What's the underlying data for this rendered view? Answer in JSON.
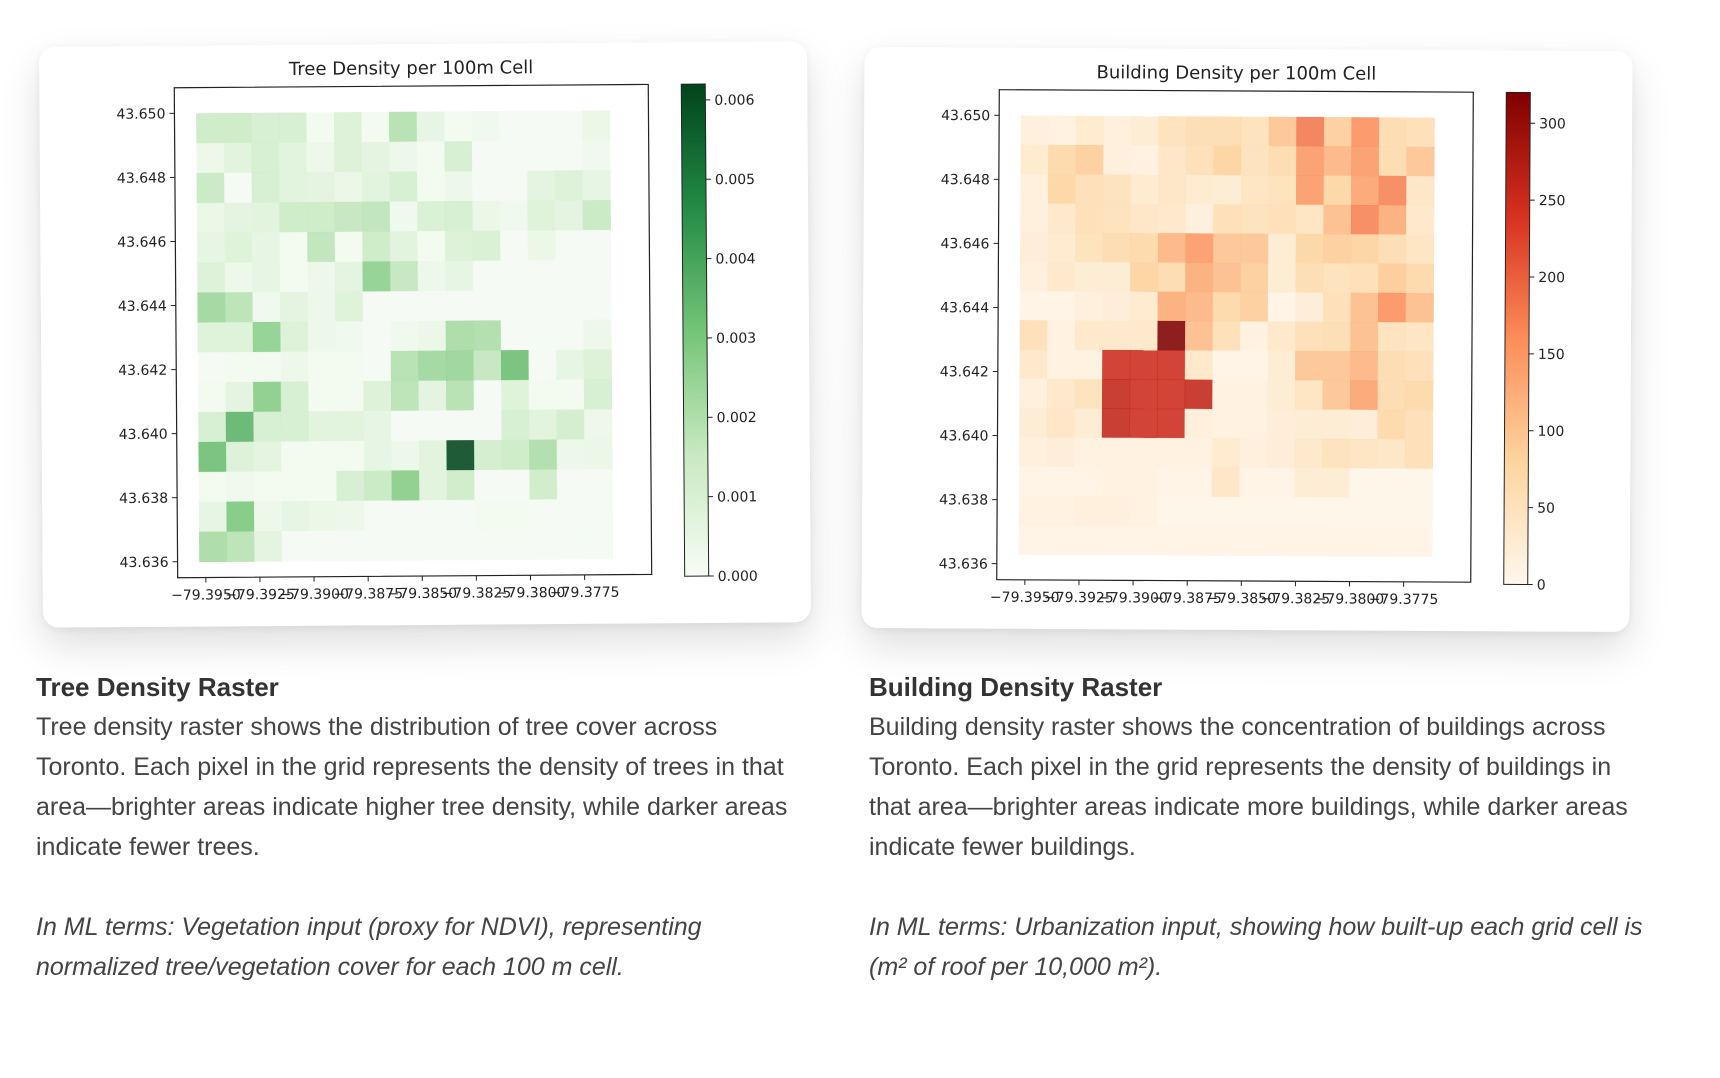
{
  "chart_data": [
    {
      "id": "tree",
      "type": "heatmap",
      "title": "Tree Density per 100m Cell",
      "xlabel": "",
      "ylabel": "",
      "colormap": [
        "#f7fcf5",
        "#c7e9c0",
        "#74c476",
        "#238b45",
        "#00441b"
      ],
      "vmin": 0,
      "vmax": 0.0062,
      "xlim": [
        -79.3963,
        -79.3744
      ],
      "ylim": [
        43.6355,
        43.6508
      ],
      "extent_lon": [
        -79.3953,
        -79.3762
      ],
      "extent_lat": [
        43.636,
        43.65
      ],
      "xticks": [
        -79.395,
        -79.3925,
        -79.39,
        -79.3875,
        -79.385,
        -79.3825,
        -79.38,
        -79.3775
      ],
      "xtick_labels": [
        "−79.3950",
        "−79.3925",
        "−79.3900",
        "−79.3875",
        "−79.3850",
        "−79.3825",
        "−79.3800",
        "−79.3775"
      ],
      "yticks": [
        43.636,
        43.638,
        43.64,
        43.642,
        43.644,
        43.646,
        43.648,
        43.65
      ],
      "ytick_labels": [
        "43.636",
        "43.638",
        "43.640",
        "43.642",
        "43.644",
        "43.646",
        "43.648",
        "43.650"
      ],
      "cbar_ticks": [
        0,
        0.001,
        0.002,
        0.003,
        0.004,
        0.005,
        0.006
      ],
      "cbar_tick_labels": [
        "0.000",
        "0.001",
        "0.002",
        "0.003",
        "0.004",
        "0.005",
        "0.006"
      ],
      "grid": [
        [
          0.0015,
          0.0015,
          0.0012,
          0.0012,
          0.0002,
          0.001,
          0.0002,
          0.002,
          0.0006,
          0.0002,
          0.0003,
          0.0001,
          0.0001,
          0.0001,
          0.0005
        ],
        [
          0.0004,
          0.0008,
          0.0012,
          0.0008,
          0.0004,
          0.001,
          0.0007,
          0.0004,
          0.0002,
          0.0012,
          0.0001,
          0.0001,
          0.0001,
          0.0001,
          0.0003
        ],
        [
          0.0016,
          0.0001,
          0.0012,
          0.0008,
          0.0007,
          0.0005,
          0.0008,
          0.0012,
          0.0002,
          0.0004,
          0.0001,
          0.0001,
          0.0007,
          0.001,
          0.0006
        ],
        [
          0.0005,
          0.0007,
          0.0008,
          0.0015,
          0.0015,
          0.0017,
          0.0018,
          0.0003,
          0.0011,
          0.0012,
          0.0005,
          0.0003,
          0.0009,
          0.0007,
          0.0016
        ],
        [
          0.0006,
          0.0009,
          0.0006,
          0.0002,
          0.0018,
          0.0002,
          0.0015,
          0.0008,
          0.0002,
          0.001,
          0.0011,
          0.0001,
          0.0005,
          0.0001,
          0.0001
        ],
        [
          0.001,
          0.0004,
          0.0006,
          0.0002,
          0.0004,
          0.0007,
          0.0027,
          0.0017,
          0.0004,
          0.0006,
          0.0001,
          0.0001,
          0.0001,
          0.0001,
          0.0001
        ],
        [
          0.0024,
          0.0019,
          0.0003,
          0.0007,
          0.0004,
          0.0009,
          0.0001,
          0.0001,
          0.0001,
          0.0001,
          0.0001,
          0.0001,
          0.0001,
          0.0001,
          0.0001
        ],
        [
          0.0009,
          0.0009,
          0.0027,
          0.001,
          0.0004,
          0.0003,
          0.0001,
          0.0003,
          0.0005,
          0.0022,
          0.0021,
          0.0001,
          0.0001,
          0.0001,
          0.0004
        ],
        [
          0.0001,
          0.0002,
          0.0002,
          0.0004,
          0.0002,
          0.0002,
          0.0001,
          0.002,
          0.0024,
          0.0025,
          0.0017,
          0.0033,
          0.0001,
          0.0006,
          0.001
        ],
        [
          0.0002,
          0.0007,
          0.0028,
          0.0012,
          0.0002,
          0.0002,
          0.001,
          0.0019,
          0.0007,
          0.002,
          0.0001,
          0.0009,
          0.0002,
          0.0002,
          0.0012
        ],
        [
          0.0012,
          0.0036,
          0.0012,
          0.0012,
          0.0008,
          0.0008,
          0.0006,
          0.0001,
          0.0001,
          0.0001,
          0.0001,
          0.0012,
          0.0008,
          0.0013,
          0.0004
        ],
        [
          0.0033,
          0.001,
          0.0007,
          0.0002,
          0.0002,
          0.0002,
          0.0006,
          0.0004,
          0.0008,
          0.0062,
          0.0013,
          0.0015,
          0.0021,
          0.0004,
          0.0005
        ],
        [
          0.0002,
          0.0003,
          0.0002,
          0.0002,
          0.0002,
          0.0012,
          0.0016,
          0.0028,
          0.0008,
          0.0014,
          0.0001,
          0.0001,
          0.0014,
          0.0001,
          0.0001
        ],
        [
          0.0006,
          0.003,
          0.0004,
          0.0006,
          0.0005,
          0.0004,
          0.0001,
          0.0001,
          0.0001,
          0.0001,
          0.0002,
          0.0002,
          0.0001,
          0.0001,
          0.0001
        ],
        [
          0.0022,
          0.0019,
          0.0007,
          0.0001,
          0.0001,
          0.0001,
          0.0001,
          0.0001,
          0.0001,
          0.0001,
          0.0001,
          0.0001,
          0.0001,
          0.0001,
          0.0001
        ]
      ]
    },
    {
      "id": "building",
      "type": "heatmap",
      "title": "Building Density per 100m Cell",
      "xlabel": "",
      "ylabel": "",
      "colormap": [
        "#fff7ec",
        "#fdd49e",
        "#fc8d59",
        "#d7301f",
        "#7f0000"
      ],
      "vmin": 0,
      "vmax": 320,
      "xlim": [
        -79.3963,
        -79.3744
      ],
      "ylim": [
        43.6355,
        43.6508
      ],
      "extent_lon": [
        -79.3953,
        -79.3762
      ],
      "extent_lat": [
        43.6363,
        43.65
      ],
      "xticks": [
        -79.395,
        -79.3925,
        -79.39,
        -79.3875,
        -79.385,
        -79.3825,
        -79.38,
        -79.3775
      ],
      "xtick_labels": [
        "−79.3950",
        "−79.3925",
        "−79.3900",
        "−79.3875",
        "−79.3850",
        "−79.3825",
        "−79.3800",
        "−79.3775"
      ],
      "yticks": [
        43.636,
        43.638,
        43.64,
        43.642,
        43.644,
        43.646,
        43.648,
        43.65
      ],
      "ytick_labels": [
        "43.636",
        "43.638",
        "43.640",
        "43.642",
        "43.644",
        "43.646",
        "43.648",
        "43.650"
      ],
      "cbar_ticks": [
        0,
        50,
        100,
        150,
        200,
        250,
        300
      ],
      "cbar_tick_labels": [
        "0",
        "50",
        "100",
        "150",
        "200",
        "250",
        "300"
      ],
      "grid": [
        [
          20,
          15,
          35,
          20,
          30,
          55,
          65,
          65,
          55,
          100,
          180,
          90,
          160,
          70,
          60
        ],
        [
          35,
          75,
          90,
          20,
          15,
          45,
          60,
          85,
          55,
          70,
          150,
          120,
          150,
          70,
          100
        ],
        [
          20,
          80,
          60,
          55,
          35,
          45,
          35,
          30,
          50,
          55,
          150,
          80,
          140,
          170,
          45
        ],
        [
          20,
          40,
          60,
          55,
          45,
          40,
          20,
          60,
          55,
          60,
          50,
          110,
          170,
          130,
          40
        ],
        [
          25,
          35,
          55,
          70,
          75,
          120,
          150,
          100,
          100,
          30,
          80,
          90,
          85,
          65,
          50
        ],
        [
          20,
          40,
          30,
          30,
          85,
          70,
          130,
          110,
          90,
          30,
          65,
          55,
          60,
          95,
          75
        ],
        [
          10,
          10,
          20,
          25,
          35,
          130,
          120,
          75,
          90,
          10,
          25,
          60,
          110,
          160,
          110
        ],
        [
          60,
          15,
          40,
          40,
          40,
          320,
          110,
          60,
          15,
          40,
          60,
          65,
          110,
          55,
          50
        ],
        [
          40,
          15,
          15,
          250,
          250,
          250,
          40,
          10,
          10,
          30,
          100,
          100,
          120,
          70,
          60
        ],
        [
          20,
          40,
          55,
          260,
          250,
          250,
          260,
          15,
          15,
          30,
          50,
          100,
          140,
          70,
          75
        ],
        [
          30,
          45,
          30,
          260,
          250,
          250,
          20,
          15,
          15,
          25,
          30,
          30,
          25,
          75,
          60
        ],
        [
          20,
          25,
          15,
          15,
          15,
          15,
          15,
          35,
          20,
          25,
          40,
          55,
          50,
          45,
          60
        ],
        [
          10,
          10,
          10,
          15,
          15,
          10,
          10,
          45,
          10,
          10,
          30,
          30,
          5,
          5,
          5
        ],
        [
          15,
          15,
          20,
          20,
          15,
          5,
          5,
          5,
          5,
          5,
          5,
          5,
          5,
          5,
          5
        ],
        [
          10,
          10,
          10,
          10,
          10,
          10,
          10,
          10,
          10,
          10,
          10,
          10,
          10,
          10,
          10
        ]
      ]
    }
  ],
  "captions": {
    "tree": {
      "heading": "Tree Density Raster",
      "body": "Tree density raster shows the distribution of tree cover across Toronto. Each pixel in the grid represents the density of trees in that area—brighter areas indicate higher tree density, while darker areas indicate fewer trees.",
      "ml_note": "In ML terms: Vegetation input (proxy for NDVI), representing normalized tree/vegetation cover for each 100 m cell."
    },
    "building": {
      "heading": "Building Density Raster",
      "body": "Building density raster shows the concentration of buildings across Toronto. Each pixel in the grid represents the density of buildings in that area—brighter areas indicate more buildings, while darker areas indicate fewer buildings.",
      "ml_note": "In ML terms: Urbanization input, showing how built-up each grid cell is (m² of roof per 10,000 m²)."
    }
  }
}
